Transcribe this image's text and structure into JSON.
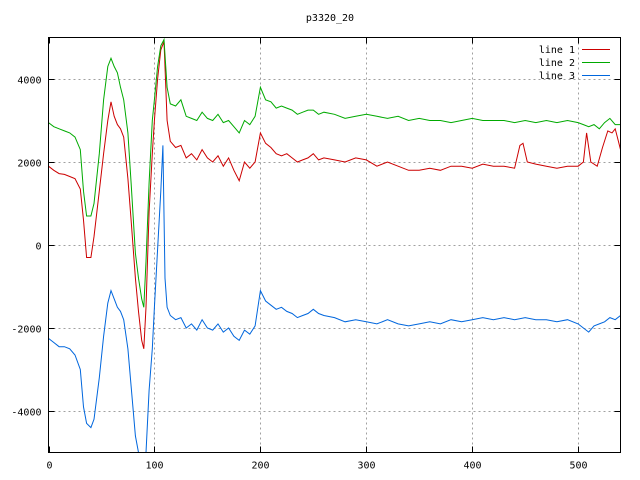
{
  "chart_data": {
    "type": "line",
    "title": "p3320_20",
    "xlabel": "",
    "ylabel": "",
    "xlim": [
      0,
      540
    ],
    "ylim": [
      -5000,
      5000
    ],
    "xticks": [
      0,
      100,
      200,
      300,
      400,
      500
    ],
    "yticks": [
      -4000,
      -2000,
      0,
      2000,
      4000
    ],
    "grid": true,
    "legend_position": "top-right",
    "series": [
      {
        "name": "line 1",
        "color": "#cc0000",
        "points": [
          [
            0,
            1900
          ],
          [
            5,
            1800
          ],
          [
            10,
            1720
          ],
          [
            15,
            1700
          ],
          [
            20,
            1650
          ],
          [
            25,
            1600
          ],
          [
            30,
            1350
          ],
          [
            33,
            600
          ],
          [
            36,
            -300
          ],
          [
            40,
            -300
          ],
          [
            43,
            200
          ],
          [
            48,
            1300
          ],
          [
            52,
            2200
          ],
          [
            56,
            3000
          ],
          [
            59,
            3450
          ],
          [
            62,
            3100
          ],
          [
            65,
            2900
          ],
          [
            68,
            2800
          ],
          [
            71,
            2600
          ],
          [
            75,
            1600
          ],
          [
            78,
            600
          ],
          [
            82,
            -800
          ],
          [
            85,
            -1600
          ],
          [
            88,
            -2300
          ],
          [
            90,
            -2500
          ],
          [
            92,
            -1500
          ],
          [
            95,
            800
          ],
          [
            98,
            2200
          ],
          [
            100,
            3000
          ],
          [
            103,
            4000
          ],
          [
            106,
            4700
          ],
          [
            109,
            4900
          ],
          [
            112,
            3000
          ],
          [
            115,
            2500
          ],
          [
            120,
            2350
          ],
          [
            125,
            2400
          ],
          [
            130,
            2100
          ],
          [
            135,
            2200
          ],
          [
            140,
            2050
          ],
          [
            145,
            2300
          ],
          [
            150,
            2100
          ],
          [
            155,
            2000
          ],
          [
            160,
            2150
          ],
          [
            165,
            1900
          ],
          [
            170,
            2100
          ],
          [
            175,
            1800
          ],
          [
            180,
            1550
          ],
          [
            185,
            2000
          ],
          [
            190,
            1850
          ],
          [
            195,
            2000
          ],
          [
            200,
            2700
          ],
          [
            205,
            2450
          ],
          [
            210,
            2350
          ],
          [
            215,
            2200
          ],
          [
            220,
            2150
          ],
          [
            225,
            2200
          ],
          [
            230,
            2100
          ],
          [
            235,
            2000
          ],
          [
            240,
            2050
          ],
          [
            245,
            2100
          ],
          [
            250,
            2200
          ],
          [
            255,
            2050
          ],
          [
            260,
            2100
          ],
          [
            270,
            2050
          ],
          [
            280,
            2000
          ],
          [
            290,
            2100
          ],
          [
            300,
            2050
          ],
          [
            310,
            1900
          ],
          [
            320,
            2000
          ],
          [
            330,
            1900
          ],
          [
            340,
            1800
          ],
          [
            350,
            1800
          ],
          [
            360,
            1850
          ],
          [
            370,
            1800
          ],
          [
            380,
            1900
          ],
          [
            390,
            1900
          ],
          [
            400,
            1850
          ],
          [
            410,
            1950
          ],
          [
            420,
            1900
          ],
          [
            430,
            1900
          ],
          [
            440,
            1850
          ],
          [
            445,
            2400
          ],
          [
            448,
            2450
          ],
          [
            452,
            2000
          ],
          [
            460,
            1950
          ],
          [
            470,
            1900
          ],
          [
            480,
            1850
          ],
          [
            490,
            1900
          ],
          [
            500,
            1900
          ],
          [
            505,
            2000
          ],
          [
            508,
            2700
          ],
          [
            512,
            2000
          ],
          [
            518,
            1900
          ],
          [
            523,
            2350
          ],
          [
            528,
            2750
          ],
          [
            532,
            2700
          ],
          [
            535,
            2800
          ],
          [
            538,
            2500
          ],
          [
            540,
            2300
          ]
        ]
      },
      {
        "name": "line 2",
        "color": "#00aa00",
        "points": [
          [
            0,
            2950
          ],
          [
            5,
            2850
          ],
          [
            10,
            2800
          ],
          [
            15,
            2750
          ],
          [
            20,
            2700
          ],
          [
            25,
            2600
          ],
          [
            30,
            2300
          ],
          [
            33,
            1300
          ],
          [
            36,
            700
          ],
          [
            40,
            700
          ],
          [
            43,
            1000
          ],
          [
            48,
            2200
          ],
          [
            52,
            3500
          ],
          [
            56,
            4300
          ],
          [
            59,
            4500
          ],
          [
            62,
            4300
          ],
          [
            65,
            4150
          ],
          [
            68,
            3800
          ],
          [
            71,
            3500
          ],
          [
            75,
            2700
          ],
          [
            78,
            1500
          ],
          [
            82,
            -200
          ],
          [
            85,
            -800
          ],
          [
            88,
            -1300
          ],
          [
            90,
            -1500
          ],
          [
            92,
            -400
          ],
          [
            95,
            1500
          ],
          [
            98,
            3000
          ],
          [
            100,
            3500
          ],
          [
            103,
            4300
          ],
          [
            106,
            4800
          ],
          [
            109,
            4950
          ],
          [
            112,
            3800
          ],
          [
            115,
            3400
          ],
          [
            120,
            3350
          ],
          [
            125,
            3500
          ],
          [
            130,
            3100
          ],
          [
            135,
            3050
          ],
          [
            140,
            3000
          ],
          [
            145,
            3200
          ],
          [
            150,
            3050
          ],
          [
            155,
            3000
          ],
          [
            160,
            3150
          ],
          [
            165,
            2950
          ],
          [
            170,
            3000
          ],
          [
            175,
            2850
          ],
          [
            180,
            2700
          ],
          [
            185,
            3000
          ],
          [
            190,
            2900
          ],
          [
            195,
            3100
          ],
          [
            200,
            3800
          ],
          [
            205,
            3500
          ],
          [
            210,
            3450
          ],
          [
            215,
            3300
          ],
          [
            220,
            3350
          ],
          [
            225,
            3300
          ],
          [
            230,
            3250
          ],
          [
            235,
            3150
          ],
          [
            240,
            3200
          ],
          [
            245,
            3250
          ],
          [
            250,
            3250
          ],
          [
            255,
            3150
          ],
          [
            260,
            3200
          ],
          [
            270,
            3150
          ],
          [
            280,
            3050
          ],
          [
            290,
            3100
          ],
          [
            300,
            3150
          ],
          [
            310,
            3100
          ],
          [
            320,
            3050
          ],
          [
            330,
            3100
          ],
          [
            340,
            3000
          ],
          [
            350,
            3050
          ],
          [
            360,
            3000
          ],
          [
            370,
            3000
          ],
          [
            380,
            2950
          ],
          [
            390,
            3000
          ],
          [
            400,
            3050
          ],
          [
            410,
            3000
          ],
          [
            420,
            3000
          ],
          [
            430,
            3000
          ],
          [
            440,
            2950
          ],
          [
            450,
            3000
          ],
          [
            460,
            2950
          ],
          [
            470,
            3000
          ],
          [
            480,
            2950
          ],
          [
            490,
            3000
          ],
          [
            500,
            2950
          ],
          [
            505,
            2900
          ],
          [
            510,
            2850
          ],
          [
            515,
            2900
          ],
          [
            520,
            2800
          ],
          [
            525,
            2950
          ],
          [
            530,
            3050
          ],
          [
            535,
            2900
          ],
          [
            540,
            2900
          ]
        ]
      },
      {
        "name": "line 3",
        "color": "#0066dd",
        "points": [
          [
            0,
            -2250
          ],
          [
            5,
            -2350
          ],
          [
            10,
            -2450
          ],
          [
            15,
            -2450
          ],
          [
            20,
            -2500
          ],
          [
            25,
            -2650
          ],
          [
            30,
            -3000
          ],
          [
            33,
            -3900
          ],
          [
            36,
            -4300
          ],
          [
            40,
            -4400
          ],
          [
            43,
            -4200
          ],
          [
            48,
            -3200
          ],
          [
            52,
            -2200
          ],
          [
            56,
            -1400
          ],
          [
            59,
            -1100
          ],
          [
            62,
            -1300
          ],
          [
            65,
            -1500
          ],
          [
            68,
            -1600
          ],
          [
            71,
            -1800
          ],
          [
            75,
            -2500
          ],
          [
            78,
            -3400
          ],
          [
            82,
            -4600
          ],
          [
            85,
            -5000
          ],
          [
            92,
            -5000
          ],
          [
            95,
            -3500
          ],
          [
            98,
            -2500
          ],
          [
            100,
            -1500
          ],
          [
            103,
            -100
          ],
          [
            106,
            1300
          ],
          [
            108,
            2400
          ],
          [
            110,
            -800
          ],
          [
            112,
            -1500
          ],
          [
            115,
            -1700
          ],
          [
            120,
            -1800
          ],
          [
            125,
            -1750
          ],
          [
            130,
            -2000
          ],
          [
            135,
            -1900
          ],
          [
            140,
            -2050
          ],
          [
            145,
            -1800
          ],
          [
            150,
            -2000
          ],
          [
            155,
            -2050
          ],
          [
            160,
            -1900
          ],
          [
            165,
            -2100
          ],
          [
            170,
            -2000
          ],
          [
            175,
            -2200
          ],
          [
            180,
            -2300
          ],
          [
            185,
            -2050
          ],
          [
            190,
            -2150
          ],
          [
            195,
            -1950
          ],
          [
            200,
            -1100
          ],
          [
            205,
            -1350
          ],
          [
            210,
            -1450
          ],
          [
            215,
            -1550
          ],
          [
            220,
            -1500
          ],
          [
            225,
            -1600
          ],
          [
            230,
            -1650
          ],
          [
            235,
            -1750
          ],
          [
            240,
            -1700
          ],
          [
            245,
            -1650
          ],
          [
            250,
            -1550
          ],
          [
            255,
            -1650
          ],
          [
            260,
            -1700
          ],
          [
            270,
            -1750
          ],
          [
            280,
            -1850
          ],
          [
            290,
            -1800
          ],
          [
            300,
            -1850
          ],
          [
            310,
            -1900
          ],
          [
            320,
            -1800
          ],
          [
            330,
            -1900
          ],
          [
            340,
            -1950
          ],
          [
            350,
            -1900
          ],
          [
            360,
            -1850
          ],
          [
            370,
            -1900
          ],
          [
            380,
            -1800
          ],
          [
            390,
            -1850
          ],
          [
            400,
            -1800
          ],
          [
            410,
            -1750
          ],
          [
            420,
            -1800
          ],
          [
            430,
            -1750
          ],
          [
            440,
            -1800
          ],
          [
            450,
            -1750
          ],
          [
            460,
            -1800
          ],
          [
            470,
            -1800
          ],
          [
            480,
            -1850
          ],
          [
            490,
            -1800
          ],
          [
            500,
            -1900
          ],
          [
            505,
            -2000
          ],
          [
            510,
            -2100
          ],
          [
            515,
            -1950
          ],
          [
            520,
            -1900
          ],
          [
            525,
            -1850
          ],
          [
            530,
            -1750
          ],
          [
            535,
            -1800
          ],
          [
            540,
            -1700
          ]
        ]
      }
    ]
  }
}
